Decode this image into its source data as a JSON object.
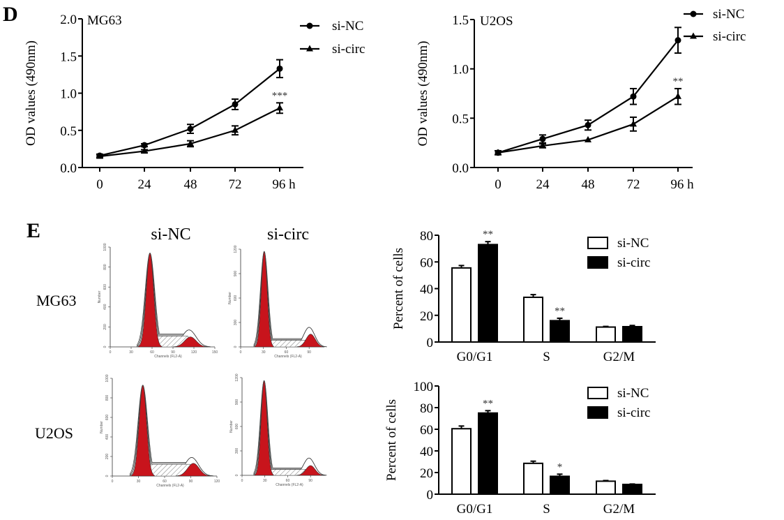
{
  "panels": {
    "d_label": "D",
    "e_label": "E"
  },
  "chart_data": [
    {
      "id": "proliferation_mg63",
      "type": "line",
      "panel": "D",
      "title": "MG63",
      "xlabel": "",
      "ylabel": "OD values (490nm)",
      "x": [
        0,
        24,
        48,
        72,
        96
      ],
      "x_tick_labels": [
        "0",
        "24",
        "48",
        "72",
        "96 h"
      ],
      "y_tick_labels": [
        "0.0",
        "0.5",
        "1.0",
        "1.5",
        "2.0"
      ],
      "y_ticks": [
        0,
        0.5,
        1.0,
        1.5,
        2.0
      ],
      "ylim": [
        0,
        2.0
      ],
      "legend_position": "top-right",
      "series": [
        {
          "name": "si-NC",
          "marker": "circle",
          "values": [
            0.16,
            0.3,
            0.52,
            0.85,
            1.33
          ],
          "errors": [
            0.02,
            0.02,
            0.06,
            0.07,
            0.12
          ]
        },
        {
          "name": "si-circ",
          "marker": "triangle",
          "values": [
            0.15,
            0.22,
            0.32,
            0.5,
            0.8
          ],
          "errors": [
            0.02,
            0.02,
            0.04,
            0.06,
            0.07
          ]
        }
      ],
      "annotations": [
        {
          "x": 96,
          "series": "si-circ",
          "text": "***"
        }
      ]
    },
    {
      "id": "proliferation_u2os",
      "type": "line",
      "panel": "D",
      "title": "U2OS",
      "xlabel": "",
      "ylabel": "OD values (490nm)",
      "x": [
        0,
        24,
        48,
        72,
        96
      ],
      "x_tick_labels": [
        "0",
        "24",
        "48",
        "72",
        "96 h"
      ],
      "y_tick_labels": [
        "0.0",
        "0.5",
        "1.0",
        "1.5"
      ],
      "y_ticks": [
        0,
        0.5,
        1.0,
        1.5
      ],
      "ylim": [
        0,
        1.5
      ],
      "legend_position": "top-right",
      "series": [
        {
          "name": "si-NC",
          "marker": "circle",
          "values": [
            0.15,
            0.29,
            0.43,
            0.72,
            1.29
          ],
          "errors": [
            0.02,
            0.04,
            0.05,
            0.08,
            0.13
          ]
        },
        {
          "name": "si-circ",
          "marker": "triangle",
          "values": [
            0.15,
            0.22,
            0.28,
            0.44,
            0.72
          ],
          "errors": [
            0.02,
            0.02,
            0.01,
            0.07,
            0.08
          ]
        }
      ],
      "annotations": [
        {
          "x": 96,
          "series": "si-circ",
          "text": "**"
        }
      ]
    },
    {
      "id": "cell_cycle_mg63",
      "type": "bar",
      "panel": "E",
      "title": "",
      "xlabel": "",
      "ylabel": "Percent of cells",
      "categories": [
        "G0/G1",
        "S",
        "G2/M"
      ],
      "y_tick_labels": [
        "0",
        "20",
        "40",
        "60",
        "80"
      ],
      "y_ticks": [
        0,
        20,
        40,
        60,
        80
      ],
      "ylim": [
        0,
        80
      ],
      "legend_position": "top-right",
      "series": [
        {
          "name": "si-NC",
          "fill": "white",
          "values": [
            55.5,
            33.5,
            11.2
          ],
          "errors": [
            1.8,
            2.0,
            0.5
          ]
        },
        {
          "name": "si-circ",
          "fill": "black",
          "values": [
            73.0,
            16.0,
            11.5
          ],
          "errors": [
            2.2,
            1.8,
            0.9
          ]
        }
      ],
      "annotations": [
        {
          "category": "G0/G1",
          "series": "si-circ",
          "text": "**"
        },
        {
          "category": "S",
          "series": "si-circ",
          "text": "**"
        }
      ]
    },
    {
      "id": "cell_cycle_u2os",
      "type": "bar",
      "panel": "E",
      "title": "",
      "xlabel": "",
      "ylabel": "Percent of cells",
      "categories": [
        "G0/G1",
        "S",
        "G2/M"
      ],
      "y_tick_labels": [
        "0",
        "20",
        "40",
        "60",
        "80",
        "100"
      ],
      "y_ticks": [
        0,
        20,
        40,
        60,
        80,
        100
      ],
      "ylim": [
        0,
        100
      ],
      "legend_position": "top-right",
      "series": [
        {
          "name": "si-NC",
          "fill": "white",
          "values": [
            60.5,
            28.5,
            12.0
          ],
          "errors": [
            2.5,
            2.0,
            0.6
          ]
        },
        {
          "name": "si-circ",
          "fill": "black",
          "values": [
            75.0,
            16.5,
            9.0
          ],
          "errors": [
            2.2,
            2.0,
            0.4
          ]
        }
      ],
      "annotations": [
        {
          "category": "G0/G1",
          "series": "si-circ",
          "text": "**"
        },
        {
          "category": "S",
          "series": "si-circ",
          "text": "*"
        }
      ]
    }
  ],
  "flow_cytometry": {
    "column_titles": [
      "si-NC",
      "si-circ"
    ],
    "row_labels": [
      "MG63",
      "U2OS"
    ],
    "y_axis_label": "Number",
    "x_axis_label": "Channels (FL2-A)",
    "plots": [
      {
        "row": "MG63",
        "col": "si-NC",
        "x_ticks": [
          "0",
          "30",
          "60",
          "90",
          "120",
          "150"
        ],
        "y_ticks": [
          "0",
          "200",
          "400",
          "600",
          "800",
          "1000"
        ],
        "xmax": 150,
        "ymax": 1000,
        "g1_peak": [
          57,
          940
        ],
        "g2_peak": [
          115,
          100
        ],
        "s_level": 110,
        "outer_bump": 170
      },
      {
        "row": "MG63",
        "col": "si-circ",
        "x_ticks": [
          "0",
          "30",
          "60",
          "90"
        ],
        "y_ticks": [
          "0",
          "300",
          "600",
          "900",
          "1200"
        ],
        "xmax": 110,
        "ymax": 1300,
        "g1_peak": [
          31,
          1270
        ],
        "g2_peak": [
          92,
          170
        ],
        "s_level": 90,
        "outer_bump": 260
      },
      {
        "row": "U2OS",
        "col": "si-NC",
        "x_ticks": [
          "0",
          "30",
          "60",
          "90",
          "120"
        ],
        "y_ticks": [
          "0",
          "200",
          "400",
          "600",
          "800",
          "1000"
        ],
        "xmax": 120,
        "ymax": 1000,
        "g1_peak": [
          35,
          930
        ],
        "g2_peak": [
          93,
          130
        ],
        "s_level": 120,
        "outer_bump": 190
      },
      {
        "row": "U2OS",
        "col": "si-circ",
        "x_ticks": [
          "0",
          "30",
          "60",
          "90"
        ],
        "y_ticks": [
          "0",
          "300",
          "600",
          "900",
          "1200"
        ],
        "xmax": 110,
        "ymax": 1300,
        "g1_peak": [
          29,
          1260
        ],
        "g2_peak": [
          90,
          130
        ],
        "s_level": 80,
        "outer_bump": 230
      }
    ]
  }
}
